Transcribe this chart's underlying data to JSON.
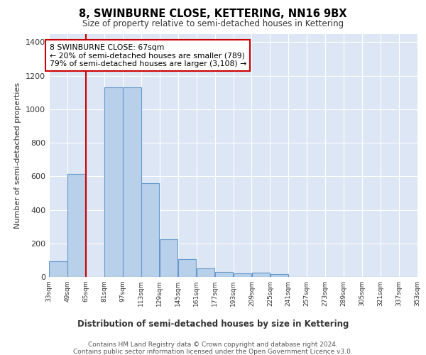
{
  "title": "8, SWINBURNE CLOSE, KETTERING, NN16 9BX",
  "subtitle": "Size of property relative to semi-detached houses in Kettering",
  "xlabel": "Distribution of semi-detached houses by size in Kettering",
  "ylabel": "Number of semi-detached properties",
  "bin_edges": [
    33,
    49,
    65,
    81,
    97,
    113,
    129,
    145,
    161,
    177,
    193,
    209,
    225,
    241,
    257,
    273,
    289,
    305,
    321,
    337,
    353
  ],
  "counts": [
    95,
    615,
    0,
    1130,
    1130,
    560,
    225,
    105,
    50,
    30,
    20,
    25,
    15,
    0,
    0,
    0,
    0,
    0,
    0,
    0
  ],
  "bar_color": "#b8d0ea",
  "bar_edge_color": "#6699cc",
  "red_line_x": 65,
  "annotation_text": "8 SWINBURNE CLOSE: 67sqm\n← 20% of semi-detached houses are smaller (789)\n79% of semi-detached houses are larger (3,108) →",
  "annotation_box_facecolor": "#ffffff",
  "annotation_box_edgecolor": "#cc0000",
  "red_line_color": "#cc0000",
  "ylim": [
    0,
    1450
  ],
  "yticks": [
    0,
    200,
    400,
    600,
    800,
    1000,
    1200,
    1400
  ],
  "plot_bg_color": "#dce6f5",
  "grid_color": "#ffffff",
  "fig_bg_color": "#ffffff",
  "footer_line1": "Contains HM Land Registry data © Crown copyright and database right 2024.",
  "footer_line2": "Contains public sector information licensed under the Open Government Licence v3.0."
}
